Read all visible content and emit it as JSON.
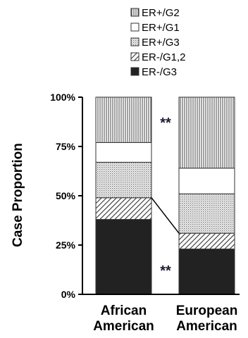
{
  "chart_data": {
    "type": "bar",
    "stacked": true,
    "normalized": true,
    "categories": [
      [
        "African",
        "American"
      ],
      [
        "European",
        "American"
      ]
    ],
    "ylabel": "Case Proportion",
    "ylim": [
      0,
      100
    ],
    "yticks": [
      "0%",
      "25%",
      "50%",
      "75%",
      "100%"
    ],
    "grid": false,
    "legend_position": "top-right",
    "series": [
      {
        "name": "ER-/G3",
        "values": [
          38,
          23
        ],
        "fill": "solid",
        "color": "#222222"
      },
      {
        "name": "ER-/G1,2",
        "values": [
          11,
          8
        ],
        "fill": "diagonal",
        "color": "#555555"
      },
      {
        "name": "ER+/G3",
        "values": [
          18,
          20
        ],
        "fill": "dots",
        "color": "#8a8a8a"
      },
      {
        "name": "ER+/G1",
        "values": [
          10,
          13
        ],
        "fill": "white",
        "color": "#ffffff"
      },
      {
        "name": "ER+/G2",
        "values": [
          23,
          36
        ],
        "fill": "vertical",
        "color": "#777777"
      }
    ],
    "legend_order": [
      "ER+/G2",
      "ER+/G1",
      "ER+/G3",
      "ER-/G1,2",
      "ER-/G3"
    ],
    "annotations": [
      {
        "text": "**",
        "category_index": 0,
        "y": 89
      },
      {
        "text": "**",
        "category_index": 0,
        "y": 14
      }
    ],
    "connector": {
      "from_category": 0,
      "to_category": 1,
      "y_from": 49,
      "y_to": 31
    }
  }
}
